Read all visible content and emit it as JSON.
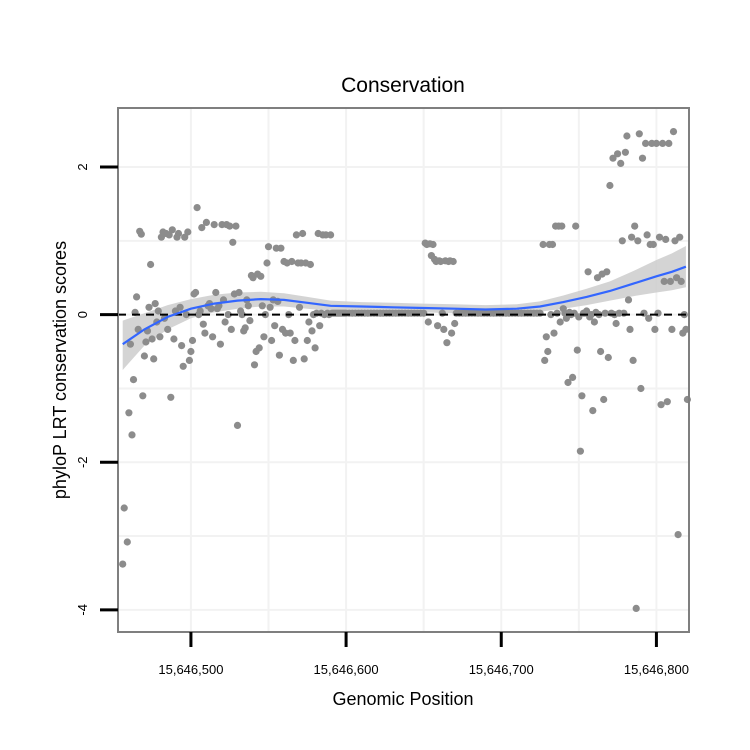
{
  "chart_data": {
    "type": "scatter",
    "title": "Conservation",
    "xlabel": "Genomic Position",
    "ylabel": "phyloP LRT conservation scores",
    "xlim": [
      15646453,
      15646821
    ],
    "ylim": [
      -4.3,
      2.8
    ],
    "x_ticks": [
      15646500,
      15646600,
      15646700,
      15646800
    ],
    "x_tick_labels": [
      "15,646,500",
      "15,646,600",
      "15,646,700",
      "15,646,800"
    ],
    "y_ticks": [
      -4,
      -2,
      0,
      2
    ],
    "y_tick_labels": [
      "-4",
      "-2",
      "0",
      "2"
    ],
    "reference_line": {
      "y": 0,
      "style": "dashed"
    },
    "colors": {
      "points": "#8c8c8c",
      "smooth": "#3366ff",
      "band": "#cccccc",
      "frame": "#7f7f7f",
      "grid": "#f2f2f2"
    },
    "points": [
      [
        15646456,
        -3.38
      ],
      [
        15646457,
        -2.62
      ],
      [
        15646459,
        -3.08
      ],
      [
        15646460,
        -1.33
      ],
      [
        15646461,
        -0.4
      ],
      [
        15646462,
        -1.63
      ],
      [
        15646463,
        -0.88
      ],
      [
        15646464,
        0.03
      ],
      [
        15646465,
        0.24
      ],
      [
        15646466,
        -0.2
      ],
      [
        15646467,
        1.13
      ],
      [
        15646468,
        1.09
      ],
      [
        15646469,
        -1.1
      ],
      [
        15646470,
        -0.56
      ],
      [
        15646471,
        -0.37
      ],
      [
        15646472,
        -0.22
      ],
      [
        15646473,
        0.1
      ],
      [
        15646474,
        0.68
      ],
      [
        15646475,
        -0.33
      ],
      [
        15646476,
        -0.6
      ],
      [
        15646477,
        0.15
      ],
      [
        15646478,
        -0.1
      ],
      [
        15646479,
        0.05
      ],
      [
        15646480,
        -0.3
      ],
      [
        15646481,
        1.05
      ],
      [
        15646482,
        1.12
      ],
      [
        15646483,
        -0.05
      ],
      [
        15646484,
        1.1
      ],
      [
        15646485,
        -0.2
      ],
      [
        15646486,
        1.08
      ],
      [
        15646487,
        -1.12
      ],
      [
        15646488,
        1.15
      ],
      [
        15646489,
        -0.33
      ],
      [
        15646490,
        0.05
      ],
      [
        15646491,
        1.05
      ],
      [
        15646492,
        1.1
      ],
      [
        15646493,
        0.1
      ],
      [
        15646494,
        -0.42
      ],
      [
        15646495,
        -0.7
      ],
      [
        15646496,
        1.05
      ],
      [
        15646497,
        0.0
      ],
      [
        15646498,
        1.12
      ],
      [
        15646499,
        -0.62
      ],
      [
        15646500,
        -0.5
      ],
      [
        15646501,
        -0.35
      ],
      [
        15646502,
        0.28
      ],
      [
        15646503,
        0.3
      ],
      [
        15646504,
        1.45
      ],
      [
        15646505,
        0.0
      ],
      [
        15646506,
        0.05
      ],
      [
        15646507,
        1.18
      ],
      [
        15646508,
        -0.13
      ],
      [
        15646509,
        -0.25
      ],
      [
        15646510,
        1.25
      ],
      [
        15646511,
        0.12
      ],
      [
        15646512,
        0.15
      ],
      [
        15646513,
        0.08
      ],
      [
        15646514,
        -0.3
      ],
      [
        15646515,
        1.22
      ],
      [
        15646516,
        0.3
      ],
      [
        15646517,
        0.08
      ],
      [
        15646518,
        0.12
      ],
      [
        15646519,
        -0.4
      ],
      [
        15646520,
        1.22
      ],
      [
        15646521,
        0.2
      ],
      [
        15646522,
        -0.1
      ],
      [
        15646523,
        1.22
      ],
      [
        15646524,
        0.0
      ],
      [
        15646525,
        1.2
      ],
      [
        15646526,
        -0.2
      ],
      [
        15646527,
        0.98
      ],
      [
        15646528,
        0.28
      ],
      [
        15646529,
        1.2
      ],
      [
        15646530,
        -1.5
      ],
      [
        15646531,
        0.3
      ],
      [
        15646532,
        0.05
      ],
      [
        15646533,
        0.0
      ],
      [
        15646534,
        -0.22
      ],
      [
        15646535,
        -0.18
      ],
      [
        15646536,
        0.2
      ],
      [
        15646537,
        0.12
      ],
      [
        15646538,
        -0.08
      ],
      [
        15646539,
        0.53
      ],
      [
        15646540,
        0.5
      ],
      [
        15646541,
        -0.68
      ],
      [
        15646542,
        -0.5
      ],
      [
        15646543,
        0.55
      ],
      [
        15646544,
        -0.45
      ],
      [
        15646545,
        0.52
      ],
      [
        15646546,
        0.12
      ],
      [
        15646547,
        -0.3
      ],
      [
        15646548,
        0.0
      ],
      [
        15646549,
        0.7
      ],
      [
        15646550,
        0.92
      ],
      [
        15646551,
        0.1
      ],
      [
        15646552,
        -0.35
      ],
      [
        15646553,
        0.2
      ],
      [
        15646554,
        -0.15
      ],
      [
        15646555,
        0.9
      ],
      [
        15646556,
        0.18
      ],
      [
        15646557,
        -0.55
      ],
      [
        15646558,
        0.9
      ],
      [
        15646559,
        -0.2
      ],
      [
        15646560,
        0.72
      ],
      [
        15646561,
        -0.25
      ],
      [
        15646562,
        0.7
      ],
      [
        15646563,
        0.0
      ],
      [
        15646564,
        -0.25
      ],
      [
        15646565,
        0.72
      ],
      [
        15646566,
        -0.62
      ],
      [
        15646567,
        -0.35
      ],
      [
        15646568,
        1.08
      ],
      [
        15646569,
        0.7
      ],
      [
        15646570,
        0.1
      ],
      [
        15646571,
        0.7
      ],
      [
        15646572,
        1.1
      ],
      [
        15646573,
        -0.6
      ],
      [
        15646574,
        0.7
      ],
      [
        15646575,
        -0.35
      ],
      [
        15646576,
        -0.1
      ],
      [
        15646577,
        0.68
      ],
      [
        15646578,
        -0.22
      ],
      [
        15646579,
        0.0
      ],
      [
        15646580,
        -0.45
      ],
      [
        15646581,
        0.02
      ],
      [
        15646582,
        1.1
      ],
      [
        15646583,
        -0.15
      ],
      [
        15646584,
        0.02
      ],
      [
        15646585,
        1.08
      ],
      [
        15646586,
        0.0
      ],
      [
        15646587,
        1.08
      ],
      [
        15646588,
        0.02
      ],
      [
        15646589,
        0.0
      ],
      [
        15646590,
        1.08
      ],
      [
        15646591,
        0.02
      ],
      [
        15646592,
        0.02
      ],
      [
        15646593,
        0.02
      ],
      [
        15646594,
        0.02
      ],
      [
        15646595,
        0.02
      ],
      [
        15646596,
        0.02
      ],
      [
        15646597,
        0.02
      ],
      [
        15646598,
        0.02
      ],
      [
        15646599,
        0.02
      ],
      [
        15646600,
        0.02
      ],
      [
        15646602,
        0.02
      ],
      [
        15646604,
        0.02
      ],
      [
        15646606,
        0.02
      ],
      [
        15646608,
        0.02
      ],
      [
        15646610,
        0.02
      ],
      [
        15646612,
        0.02
      ],
      [
        15646614,
        0.02
      ],
      [
        15646616,
        0.02
      ],
      [
        15646618,
        0.02
      ],
      [
        15646620,
        0.02
      ],
      [
        15646622,
        0.02
      ],
      [
        15646624,
        0.02
      ],
      [
        15646626,
        0.02
      ],
      [
        15646628,
        0.02
      ],
      [
        15646630,
        0.02
      ],
      [
        15646632,
        0.02
      ],
      [
        15646634,
        0.02
      ],
      [
        15646636,
        0.02
      ],
      [
        15646638,
        0.02
      ],
      [
        15646640,
        0.02
      ],
      [
        15646642,
        0.02
      ],
      [
        15646644,
        0.02
      ],
      [
        15646646,
        0.02
      ],
      [
        15646648,
        0.02
      ],
      [
        15646650,
        0.02
      ],
      [
        15646651,
        0.97
      ],
      [
        15646652,
        0.95
      ],
      [
        15646653,
        -0.1
      ],
      [
        15646654,
        0.96
      ],
      [
        15646655,
        0.8
      ],
      [
        15646656,
        0.95
      ],
      [
        15646657,
        0.75
      ],
      [
        15646658,
        0.72
      ],
      [
        15646659,
        -0.15
      ],
      [
        15646660,
        0.73
      ],
      [
        15646661,
        0.72
      ],
      [
        15646662,
        0.02
      ],
      [
        15646663,
        -0.2
      ],
      [
        15646664,
        0.73
      ],
      [
        15646665,
        -0.38
      ],
      [
        15646666,
        0.72
      ],
      [
        15646667,
        0.73
      ],
      [
        15646668,
        -0.25
      ],
      [
        15646669,
        0.72
      ],
      [
        15646670,
        -0.12
      ],
      [
        15646671,
        0.02
      ],
      [
        15646673,
        0.02
      ],
      [
        15646675,
        0.02
      ],
      [
        15646677,
        0.02
      ],
      [
        15646679,
        0.02
      ],
      [
        15646681,
        0.02
      ],
      [
        15646683,
        0.02
      ],
      [
        15646685,
        0.02
      ],
      [
        15646687,
        0.02
      ],
      [
        15646689,
        0.02
      ],
      [
        15646691,
        0.02
      ],
      [
        15646693,
        0.02
      ],
      [
        15646695,
        0.02
      ],
      [
        15646697,
        0.02
      ],
      [
        15646699,
        0.02
      ],
      [
        15646701,
        0.02
      ],
      [
        15646703,
        0.02
      ],
      [
        15646705,
        0.02
      ],
      [
        15646707,
        0.02
      ],
      [
        15646709,
        0.02
      ],
      [
        15646711,
        0.02
      ],
      [
        15646713,
        0.02
      ],
      [
        15646715,
        0.02
      ],
      [
        15646717,
        0.02
      ],
      [
        15646719,
        0.02
      ],
      [
        15646721,
        0.02
      ],
      [
        15646723,
        0.02
      ],
      [
        15646725,
        0.02
      ],
      [
        15646727,
        0.95
      ],
      [
        15646728,
        -0.62
      ],
      [
        15646729,
        -0.3
      ],
      [
        15646730,
        -0.5
      ],
      [
        15646731,
        0.95
      ],
      [
        15646732,
        0.0
      ],
      [
        15646733,
        0.95
      ],
      [
        15646734,
        -0.25
      ],
      [
        15646735,
        1.2
      ],
      [
        15646736,
        0.02
      ],
      [
        15646737,
        1.2
      ],
      [
        15646738,
        -0.1
      ],
      [
        15646739,
        1.2
      ],
      [
        15646740,
        0.08
      ],
      [
        15646741,
        0.02
      ],
      [
        15646742,
        -0.05
      ],
      [
        15646743,
        -0.92
      ],
      [
        15646744,
        0.03
      ],
      [
        15646745,
        0.0
      ],
      [
        15646746,
        -0.85
      ],
      [
        15646747,
        0.02
      ],
      [
        15646748,
        1.2
      ],
      [
        15646749,
        -0.48
      ],
      [
        15646750,
        -0.03
      ],
      [
        15646751,
        -1.85
      ],
      [
        15646752,
        -1.1
      ],
      [
        15646753,
        0.02
      ],
      [
        15646754,
        0.02
      ],
      [
        15646755,
        0.05
      ],
      [
        15646756,
        0.58
      ],
      [
        15646757,
        -0.03
      ],
      [
        15646758,
        0.0
      ],
      [
        15646759,
        -1.3
      ],
      [
        15646760,
        -0.1
      ],
      [
        15646761,
        0.03
      ],
      [
        15646762,
        0.5
      ],
      [
        15646763,
        0.0
      ],
      [
        15646764,
        -0.5
      ],
      [
        15646765,
        0.55
      ],
      [
        15646766,
        -1.15
      ],
      [
        15646767,
        0.02
      ],
      [
        15646768,
        0.58
      ],
      [
        15646769,
        -0.58
      ],
      [
        15646770,
        1.75
      ],
      [
        15646771,
        0.02
      ],
      [
        15646772,
        2.12
      ],
      [
        15646773,
        0.0
      ],
      [
        15646774,
        -0.12
      ],
      [
        15646775,
        2.18
      ],
      [
        15646776,
        0.02
      ],
      [
        15646777,
        2.05
      ],
      [
        15646778,
        1.0
      ],
      [
        15646779,
        0.02
      ],
      [
        15646780,
        2.2
      ],
      [
        15646781,
        2.42
      ],
      [
        15646782,
        0.2
      ],
      [
        15646783,
        -0.2
      ],
      [
        15646784,
        1.05
      ],
      [
        15646785,
        -0.62
      ],
      [
        15646786,
        1.2
      ],
      [
        15646787,
        -3.98
      ],
      [
        15646788,
        1.0
      ],
      [
        15646789,
        2.45
      ],
      [
        15646790,
        -1.0
      ],
      [
        15646791,
        2.12
      ],
      [
        15646792,
        0.02
      ],
      [
        15646793,
        2.32
      ],
      [
        15646794,
        1.08
      ],
      [
        15646795,
        -0.05
      ],
      [
        15646796,
        0.95
      ],
      [
        15646797,
        2.32
      ],
      [
        15646798,
        0.95
      ],
      [
        15646799,
        -0.2
      ],
      [
        15646800,
        2.32
      ],
      [
        15646801,
        0.02
      ],
      [
        15646802,
        1.05
      ],
      [
        15646803,
        -1.22
      ],
      [
        15646804,
        2.32
      ],
      [
        15646805,
        0.45
      ],
      [
        15646806,
        1.02
      ],
      [
        15646807,
        -1.18
      ],
      [
        15646808,
        2.32
      ],
      [
        15646809,
        0.45
      ],
      [
        15646810,
        -0.2
      ],
      [
        15646811,
        2.48
      ],
      [
        15646812,
        1.0
      ],
      [
        15646813,
        0.5
      ],
      [
        15646814,
        -2.98
      ],
      [
        15646815,
        1.05
      ],
      [
        15646816,
        0.45
      ],
      [
        15646817,
        -0.25
      ],
      [
        15646818,
        0.0
      ],
      [
        15646819,
        -0.2
      ],
      [
        15646820,
        -1.15
      ]
    ],
    "smooth": [
      {
        "x": 15646456,
        "y": -0.4,
        "lo": -0.75,
        "hi": -0.08
      },
      {
        "x": 15646470,
        "y": -0.2,
        "lo": -0.42,
        "hi": 0.02
      },
      {
        "x": 15646485,
        "y": -0.03,
        "lo": -0.2,
        "hi": 0.13
      },
      {
        "x": 15646500,
        "y": 0.08,
        "lo": -0.05,
        "hi": 0.21
      },
      {
        "x": 15646515,
        "y": 0.15,
        "lo": 0.03,
        "hi": 0.27
      },
      {
        "x": 15646530,
        "y": 0.19,
        "lo": 0.08,
        "hi": 0.3
      },
      {
        "x": 15646545,
        "y": 0.21,
        "lo": 0.11,
        "hi": 0.31
      },
      {
        "x": 15646560,
        "y": 0.2,
        "lo": 0.11,
        "hi": 0.29
      },
      {
        "x": 15646575,
        "y": 0.16,
        "lo": 0.08,
        "hi": 0.24
      },
      {
        "x": 15646590,
        "y": 0.12,
        "lo": 0.05,
        "hi": 0.19
      },
      {
        "x": 15646610,
        "y": 0.11,
        "lo": 0.05,
        "hi": 0.17
      },
      {
        "x": 15646630,
        "y": 0.1,
        "lo": 0.04,
        "hi": 0.16
      },
      {
        "x": 15646650,
        "y": 0.09,
        "lo": 0.03,
        "hi": 0.15
      },
      {
        "x": 15646670,
        "y": 0.08,
        "lo": 0.02,
        "hi": 0.14
      },
      {
        "x": 15646690,
        "y": 0.07,
        "lo": 0.01,
        "hi": 0.13
      },
      {
        "x": 15646710,
        "y": 0.08,
        "lo": 0.02,
        "hi": 0.14
      },
      {
        "x": 15646725,
        "y": 0.11,
        "lo": 0.04,
        "hi": 0.18
      },
      {
        "x": 15646740,
        "y": 0.17,
        "lo": 0.08,
        "hi": 0.26
      },
      {
        "x": 15646755,
        "y": 0.24,
        "lo": 0.13,
        "hi": 0.35
      },
      {
        "x": 15646770,
        "y": 0.32,
        "lo": 0.19,
        "hi": 0.45
      },
      {
        "x": 15646785,
        "y": 0.42,
        "lo": 0.25,
        "hi": 0.59
      },
      {
        "x": 15646800,
        "y": 0.52,
        "lo": 0.3,
        "hi": 0.74
      },
      {
        "x": 15646810,
        "y": 0.58,
        "lo": 0.33,
        "hi": 0.83
      },
      {
        "x": 15646819,
        "y": 0.65,
        "lo": 0.37,
        "hi": 0.93
      }
    ]
  }
}
